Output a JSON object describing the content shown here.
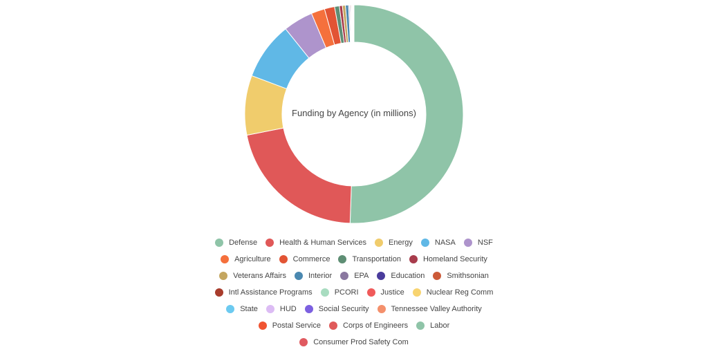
{
  "chart_data": {
    "type": "pie",
    "title": "Funding by Agency (in millions)",
    "unit": "millions",
    "categories": [
      "Defense",
      "Health & Human Services",
      "Energy",
      "NASA",
      "NSF",
      "Agriculture",
      "Commerce",
      "Transportation",
      "Homeland Security",
      "Veterans Affairs",
      "Interior",
      "EPA",
      "Education",
      "Smithsonian",
      "Intl Assistance Programs",
      "PCORI",
      "Justice",
      "Nuclear Reg Comm",
      "State",
      "HUD",
      "Social Security",
      "Tennessee Valley Authority",
      "Postal Service",
      "Corps of Engineers",
      "Labor",
      "Consumer Prod Safety Com"
    ],
    "values": [
      50.5,
      21.3,
      8.8,
      8.5,
      4.4,
      2.0,
      1.5,
      0.7,
      0.45,
      0.45,
      0.45,
      0.15,
      0.12,
      0.12,
      0.08,
      0.06,
      0.05,
      0.04,
      0.04,
      0.03,
      0.03,
      0.02,
      0.02,
      0.02,
      0.01,
      0.01
    ],
    "colors": [
      "#8fc4a8",
      "#e05858",
      "#f0cc6c",
      "#60b8e6",
      "#ae94cc",
      "#f5703c",
      "#e25434",
      "#5e8e74",
      "#a83c4c",
      "#c4a660",
      "#4a88b0",
      "#8a78a0",
      "#4a3c9c",
      "#cc5a38",
      "#a83c2c",
      "#a8dcc0",
      "#f05a5a",
      "#f8d470",
      "#6ccaf0",
      "#dcbcf4",
      "#7c60e0",
      "#f4906c",
      "#f05432",
      "#e05a5a",
      "#8fc4a8",
      "#e05a60"
    ],
    "legend_position": "bottom",
    "donut": true
  }
}
